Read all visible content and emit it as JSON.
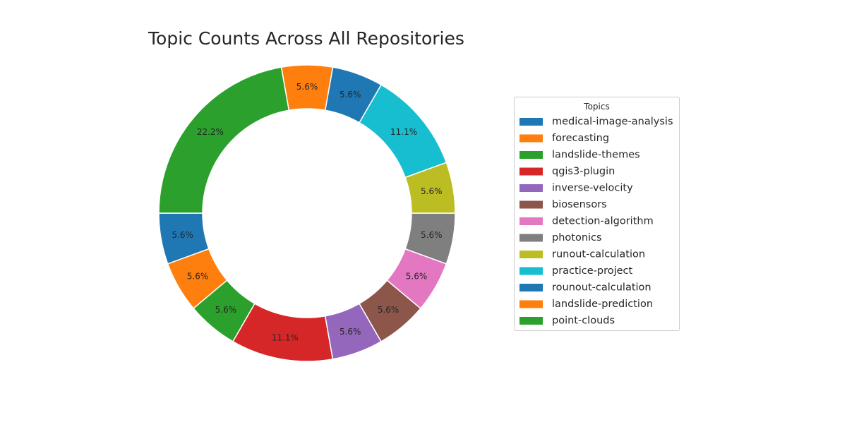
{
  "chart_data": {
    "type": "pie",
    "variant": "donut",
    "title": "Topic Counts Across All Repositories",
    "legend": {
      "title": "Topics",
      "placement": "right"
    },
    "slices": [
      {
        "label": "medical-image-analysis",
        "value": 1,
        "pct_label": "5.6%",
        "color": "#1f77b4"
      },
      {
        "label": "forecasting",
        "value": 1,
        "pct_label": "5.6%",
        "color": "#ff7f0e"
      },
      {
        "label": "landslide-themes",
        "value": 1,
        "pct_label": "5.6%",
        "color": "#2ca02c"
      },
      {
        "label": "qgis3-plugin",
        "value": 2,
        "pct_label": "11.1%",
        "color": "#d62728"
      },
      {
        "label": "inverse-velocity",
        "value": 1,
        "pct_label": "5.6%",
        "color": "#9467bd"
      },
      {
        "label": "biosensors",
        "value": 1,
        "pct_label": "5.6%",
        "color": "#8c564b"
      },
      {
        "label": "detection-algorithm",
        "value": 1,
        "pct_label": "5.6%",
        "color": "#e377c2"
      },
      {
        "label": "photonics",
        "value": 1,
        "pct_label": "5.6%",
        "color": "#7f7f7f"
      },
      {
        "label": "runout-calculation",
        "value": 1,
        "pct_label": "5.6%",
        "color": "#bcbd22"
      },
      {
        "label": "practice-project",
        "value": 2,
        "pct_label": "11.1%",
        "color": "#17becf"
      },
      {
        "label": "rounout-calculation",
        "value": 1,
        "pct_label": "5.6%",
        "color": "#1f77b4"
      },
      {
        "label": "landslide-prediction",
        "value": 1,
        "pct_label": "5.6%",
        "color": "#ff7f0e"
      },
      {
        "label": "point-clouds",
        "value": 4,
        "pct_label": "22.2%",
        "color": "#2ca02c"
      }
    ]
  }
}
